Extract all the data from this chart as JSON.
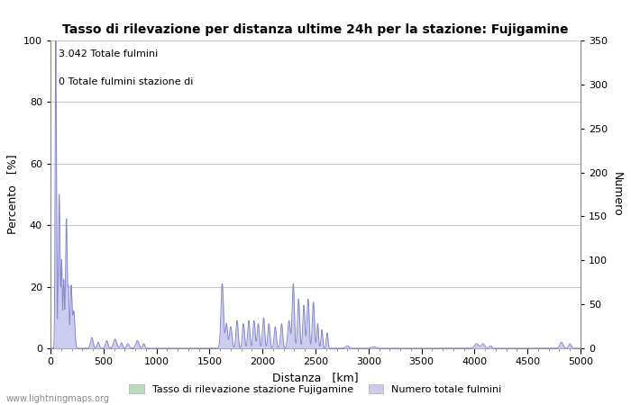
{
  "title": "Tasso di rilevazione per distanza ultime 24h per la stazione: Fujigamine",
  "xlabel": "Distanza   [km]",
  "ylabel_left": "Percento   [%]",
  "ylabel_right": "Numero",
  "annotation_line1": "3.042 Totale fulmini",
  "annotation_line2": "0 Totale fulmini stazione di",
  "xlim": [
    0,
    5000
  ],
  "ylim_left": [
    0,
    100
  ],
  "ylim_right": [
    0,
    350
  ],
  "xticks": [
    0,
    500,
    1000,
    1500,
    2000,
    2500,
    3000,
    3500,
    4000,
    4500,
    5000
  ],
  "yticks_left": [
    0,
    20,
    40,
    60,
    80,
    100
  ],
  "yticks_right": [
    0,
    50,
    100,
    150,
    200,
    250,
    300,
    350
  ],
  "background_color": "#ffffff",
  "grid_color": "#c8c8c8",
  "line_color": "#8888cc",
  "fill_color_blue": "#ccccee",
  "fill_color_green": "#bbddbb",
  "legend_label_green": "Tasso di rilevazione stazione Fujigamine",
  "legend_label_blue": "Numero totale fulmini",
  "watermark": "www.lightningmaps.org",
  "title_fontsize": 10,
  "axis_fontsize": 9,
  "tick_fontsize": 8,
  "annotation_fontsize": 8
}
